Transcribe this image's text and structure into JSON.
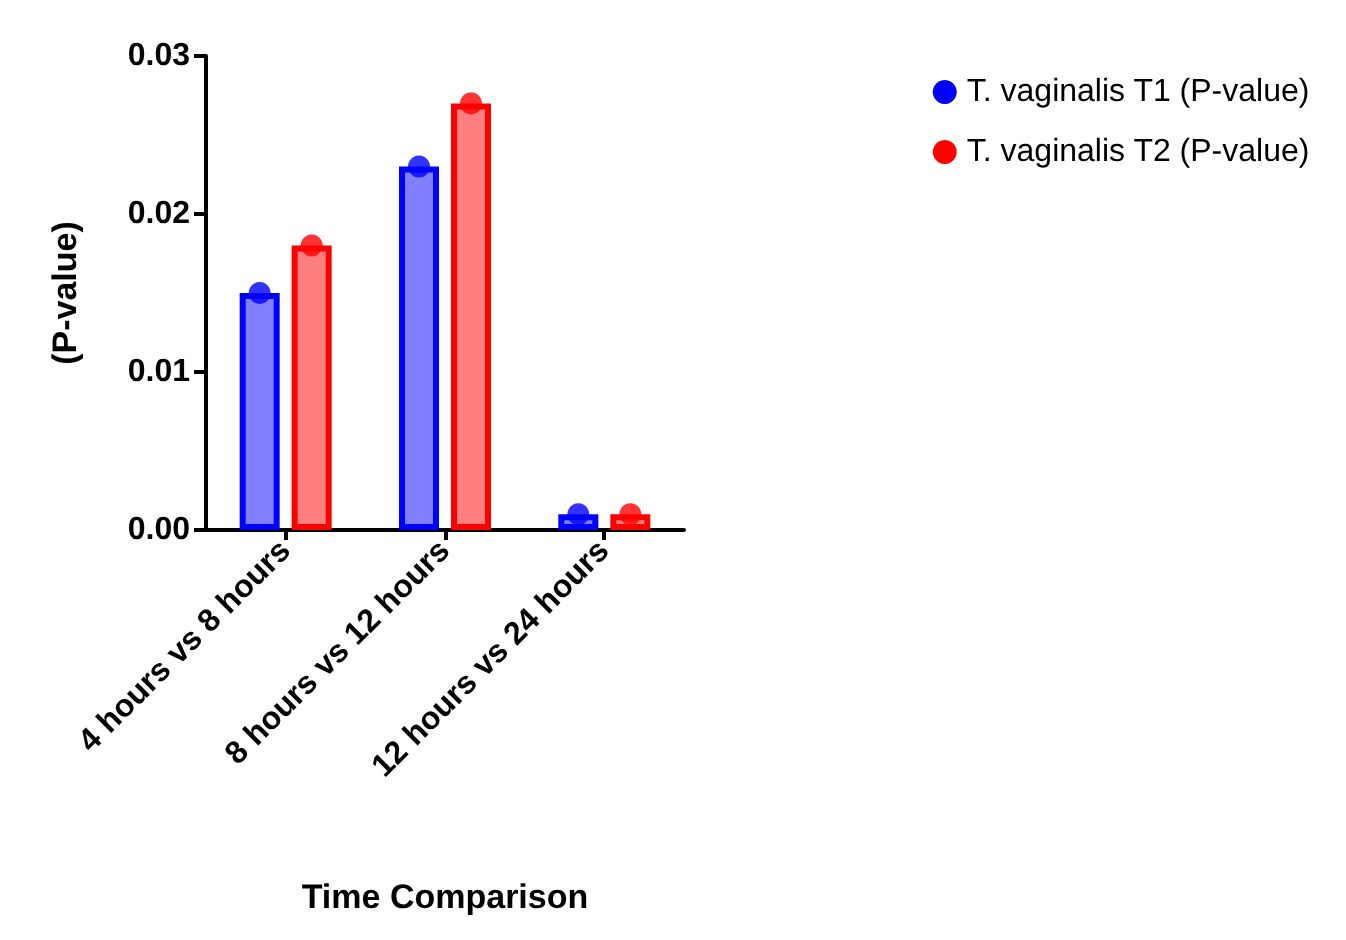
{
  "chart_data": {
    "type": "bar",
    "xlabel": "Time Comparison",
    "ylabel": "(P-value)",
    "categories": [
      "4 hours vs 8 hours",
      "8 hours vs 12 hours",
      "12 hours vs 24 hours"
    ],
    "series": [
      {
        "name": "T. vaginalis T1 (P-value)",
        "color": "#0000ff",
        "values": [
          0.015,
          0.023,
          0.001
        ]
      },
      {
        "name": "T. vaginalis T2 (P-value)",
        "color": "#ff0000",
        "values": [
          0.018,
          0.027,
          0.001
        ]
      },
      {
        "type": "scatter",
        "color": "#0000ff",
        "x": [
          "4 hours vs 8 hours",
          "8 hours vs 12 hours",
          "12 hours vs 24 hours"
        ],
        "values": [
          0.015,
          0.023,
          0.001
        ]
      },
      {
        "type": "scatter",
        "color": "#ff0000",
        "x": [
          "4 hours vs 8 hours",
          "8 hours vs 12 hours",
          "12 hours vs 24 hours"
        ],
        "values": [
          0.018,
          0.027,
          0.001
        ]
      }
    ],
    "ylim": [
      0,
      0.03
    ],
    "yticks": [
      {
        "value": 0,
        "label": "0.00"
      },
      {
        "value": 0.01,
        "label": "0.01"
      },
      {
        "value": 0.02,
        "label": "0.02"
      },
      {
        "value": 0.03,
        "label": "0.03"
      }
    ],
    "grid": false,
    "legend": "top right",
    "marker": "circle"
  }
}
